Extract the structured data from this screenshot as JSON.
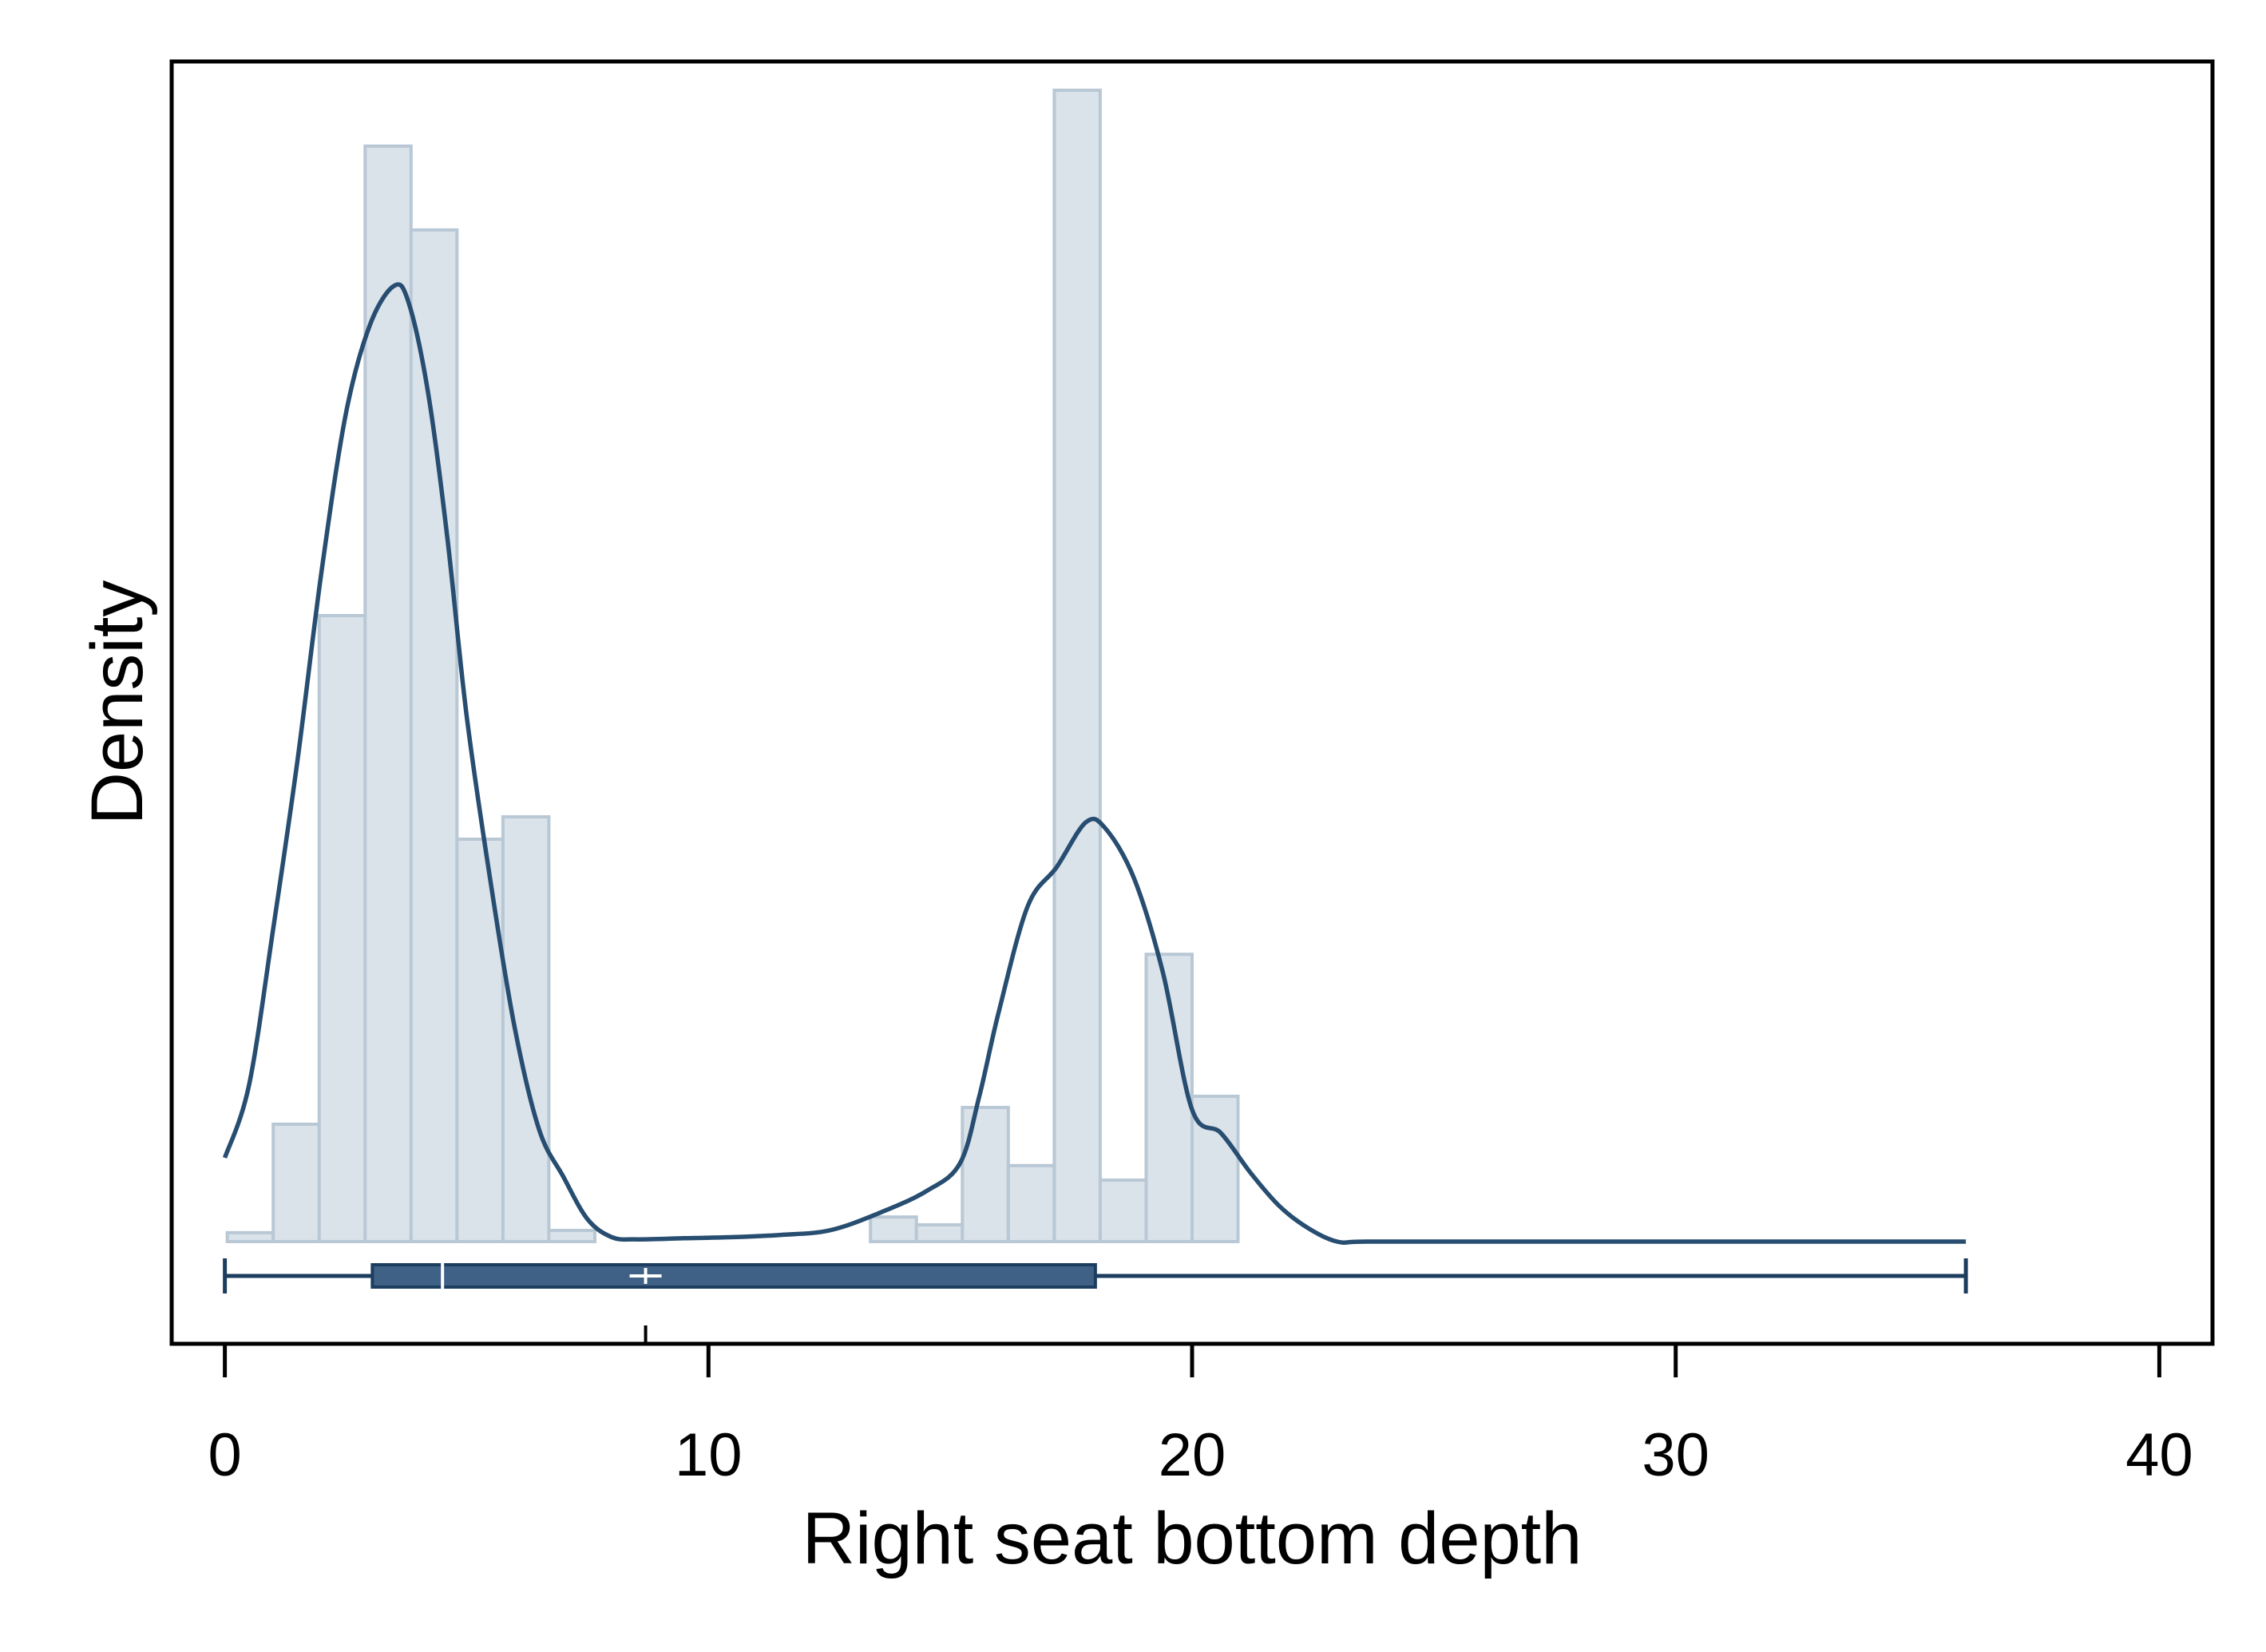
{
  "chart_data": {
    "type": "histogram",
    "xlabel": "Right seat bottom depth",
    "ylabel": "Density",
    "xlim": [
      -1.1,
      41.1
    ],
    "xticks": [
      0,
      10,
      20,
      30,
      40
    ],
    "xtick_labels": [
      "0",
      "10",
      "20",
      "30",
      "40"
    ],
    "yticks_shown": false,
    "grid": false,
    "legend": "none",
    "histogram": {
      "bin_width": 0.95,
      "relative_density_max": 1.0,
      "bins": [
        {
          "start": 0.05,
          "density": 0.008
        },
        {
          "start": 1.0,
          "density": 0.105
        },
        {
          "start": 1.95,
          "density": 0.56
        },
        {
          "start": 2.9,
          "density": 0.98
        },
        {
          "start": 3.85,
          "density": 0.905
        },
        {
          "start": 4.8,
          "density": 0.36
        },
        {
          "start": 5.75,
          "density": 0.38
        },
        {
          "start": 6.7,
          "density": 0.01
        },
        {
          "start": 7.65,
          "density": 0.0
        },
        {
          "start": 8.6,
          "density": 0.0
        },
        {
          "start": 9.55,
          "density": 0.0
        },
        {
          "start": 10.5,
          "density": 0.0
        },
        {
          "start": 11.45,
          "density": 0.0
        },
        {
          "start": 12.4,
          "density": 0.0
        },
        {
          "start": 13.35,
          "density": 0.022
        },
        {
          "start": 14.3,
          "density": 0.015
        },
        {
          "start": 15.25,
          "density": 0.12
        },
        {
          "start": 16.2,
          "density": 0.068
        },
        {
          "start": 17.15,
          "density": 1.03
        },
        {
          "start": 18.1,
          "density": 0.055
        },
        {
          "start": 19.05,
          "density": 0.257
        },
        {
          "start": 20.0,
          "density": 0.13
        }
      ]
    },
    "kde": {
      "x": [
        0,
        0.5,
        1,
        1.5,
        2,
        2.5,
        3,
        3.5,
        3.8,
        4.2,
        4.6,
        5,
        5.5,
        6,
        6.5,
        7,
        7.5,
        8,
        8.5,
        9.5,
        10.5,
        11.5,
        12.5,
        13.5,
        14.5,
        15.2,
        15.6,
        16,
        16.6,
        17.2,
        17.8,
        18.2,
        18.8,
        19.4,
        20,
        20.6,
        21.2,
        21.8,
        22.4,
        23,
        23.6,
        26,
        28,
        30,
        33,
        36
      ],
      "y": [
        0.075,
        0.14,
        0.28,
        0.43,
        0.6,
        0.74,
        0.82,
        0.855,
        0.84,
        0.76,
        0.63,
        0.47,
        0.32,
        0.19,
        0.1,
        0.058,
        0.02,
        0.004,
        0.002,
        0.003,
        0.004,
        0.006,
        0.01,
        0.025,
        0.045,
        0.07,
        0.13,
        0.205,
        0.3,
        0.335,
        0.375,
        0.37,
        0.325,
        0.24,
        0.118,
        0.097,
        0.062,
        0.032,
        0.012,
        0.0,
        0.0,
        0.0,
        0.0,
        0.0,
        0.0,
        0.0
      ]
    },
    "boxplot": {
      "min": 0,
      "q1": 3.05,
      "median": 4.5,
      "mean": 8.7,
      "q3": 18,
      "max": 36
    },
    "colors": {
      "bar_fill": "#dae2ea",
      "bar_edge": "#b9c8d5",
      "kde_line": "#274d70",
      "box_fill": "#3f6186",
      "box_edge": "#1c3d5e",
      "frame": "#000000"
    }
  }
}
